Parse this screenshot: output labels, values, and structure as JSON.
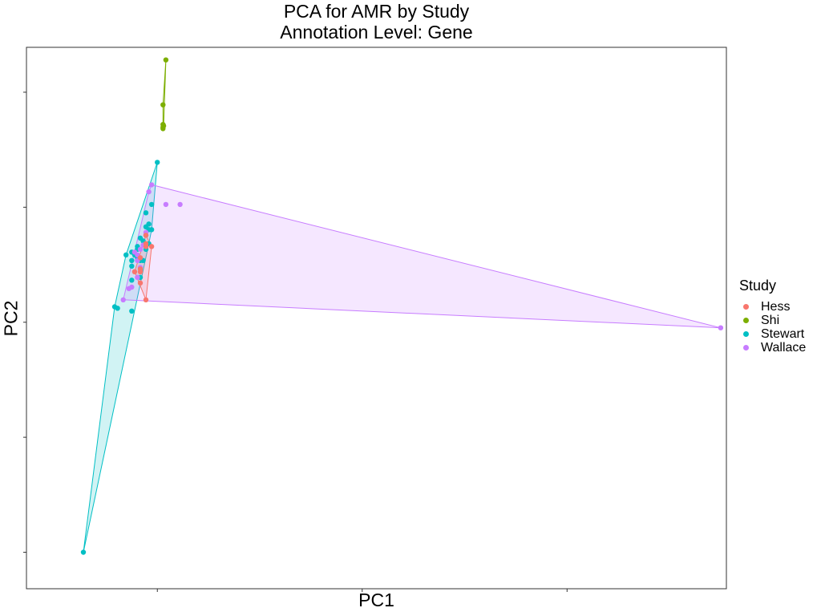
{
  "chart_data": {
    "type": "scatter",
    "title": "PCA for AMR by Study",
    "subtitle": "Annotation Level: Gene",
    "xlabel": "PC1",
    "ylabel": "PC2",
    "xlim": [
      -0.23,
      1.0
    ],
    "ylim": [
      -0.95,
      0.98
    ],
    "xticks": [
      0,
      0.36,
      0.72
    ],
    "yticks": [
      -0.82,
      -0.41,
      0.0,
      0.41,
      0.82
    ],
    "tick_labels_shown": false,
    "grid": false,
    "legend": {
      "title": "Study",
      "position": "right"
    },
    "series": [
      {
        "name": "Hess",
        "color": "#F8766D",
        "points": [
          [
            -0.03,
            0.19
          ],
          [
            -0.02,
            0.28
          ],
          [
            -0.04,
            0.18
          ],
          [
            -0.03,
            0.23
          ],
          [
            -0.02,
            0.08
          ],
          [
            -0.03,
            0.14
          ],
          [
            -0.02,
            0.27
          ],
          [
            -0.01,
            0.27
          ],
          [
            -0.02,
            0.31
          ],
          [
            -0.03,
            0.18
          ]
        ]
      },
      {
        "name": "Shi",
        "color": "#7CAE00",
        "points": [
          [
            0.015,
            0.935
          ],
          [
            0.01,
            0.775
          ],
          [
            0.01,
            0.695
          ],
          [
            0.01,
            0.705
          ],
          [
            0.01,
            0.69
          ],
          [
            0.011,
            0.7
          ]
        ]
      },
      {
        "name": "Stewart",
        "color": "#00BFC4",
        "points": [
          [
            -0.13,
            -0.82
          ],
          [
            0.0,
            0.57
          ],
          [
            -0.055,
            0.24
          ],
          [
            -0.07,
            0.05
          ],
          [
            -0.075,
            0.055
          ],
          [
            -0.045,
            0.15
          ],
          [
            -0.045,
            0.04
          ],
          [
            -0.035,
            0.23
          ],
          [
            -0.03,
            0.16
          ],
          [
            -0.045,
            0.2
          ],
          [
            -0.035,
            0.26
          ],
          [
            -0.025,
            0.29
          ],
          [
            -0.02,
            0.31
          ],
          [
            -0.015,
            0.35
          ],
          [
            -0.01,
            0.42
          ],
          [
            -0.02,
            0.26
          ],
          [
            -0.03,
            0.3
          ],
          [
            -0.02,
            0.34
          ],
          [
            -0.025,
            0.22
          ],
          [
            -0.04,
            0.24
          ],
          [
            -0.035,
            0.27
          ],
          [
            -0.045,
            0.25
          ],
          [
            -0.03,
            0.22
          ],
          [
            -0.045,
            0.22
          ],
          [
            -0.015,
            0.33
          ],
          [
            -0.02,
            0.39
          ],
          [
            -0.01,
            0.33
          ],
          [
            -0.015,
            0.28
          ]
        ]
      },
      {
        "name": "Wallace",
        "color": "#C77CFF",
        "points": [
          [
            0.99,
            -0.02
          ],
          [
            0.015,
            0.42
          ],
          [
            0.04,
            0.42
          ],
          [
            -0.01,
            0.49
          ],
          [
            -0.015,
            0.465
          ],
          [
            -0.05,
            0.12
          ],
          [
            -0.045,
            0.125
          ],
          [
            -0.06,
            0.08
          ],
          [
            -0.03,
            0.26
          ],
          [
            -0.035,
            0.22
          ],
          [
            -0.025,
            0.275
          ],
          [
            -0.02,
            0.27
          ],
          [
            -0.035,
            0.16
          ],
          [
            -0.02,
            0.32
          ],
          [
            -0.03,
            0.195
          ],
          [
            -0.04,
            0.25
          ],
          [
            -0.035,
            0.24
          ]
        ]
      }
    ]
  }
}
